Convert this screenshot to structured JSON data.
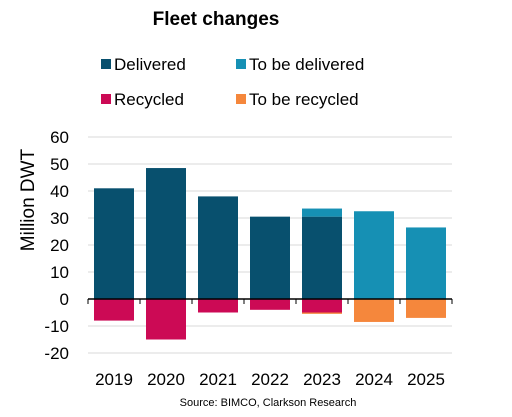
{
  "chart_data": {
    "type": "bar",
    "stacked": true,
    "title": "Fleet changes",
    "ylabel": "Million DWT",
    "xlabel": "",
    "source": "Source: BIMCO, Clarkson Research",
    "categories": [
      "2019",
      "2020",
      "2021",
      "2022",
      "2023",
      "2024",
      "2025"
    ],
    "ylim": [
      -20,
      60
    ],
    "yticks": [
      -20,
      -10,
      0,
      10,
      20,
      30,
      40,
      50,
      60
    ],
    "grid": true,
    "legend_position": "top",
    "series": [
      {
        "name": "Delivered",
        "color": "#08506e",
        "values": [
          41,
          48.5,
          38,
          30.5,
          30.5,
          0,
          0
        ]
      },
      {
        "name": "To be delivered",
        "color": "#1690b4",
        "values": [
          0,
          0,
          0,
          0,
          3,
          32.5,
          26.5
        ]
      },
      {
        "name": "Recycled",
        "color": "#cc0a55",
        "values": [
          -8,
          -15,
          -5,
          -4,
          -5,
          0,
          0
        ]
      },
      {
        "name": "To be recycled",
        "color": "#f5873c",
        "values": [
          0,
          0,
          0,
          0,
          -0.5,
          -8.5,
          -7
        ]
      }
    ]
  }
}
